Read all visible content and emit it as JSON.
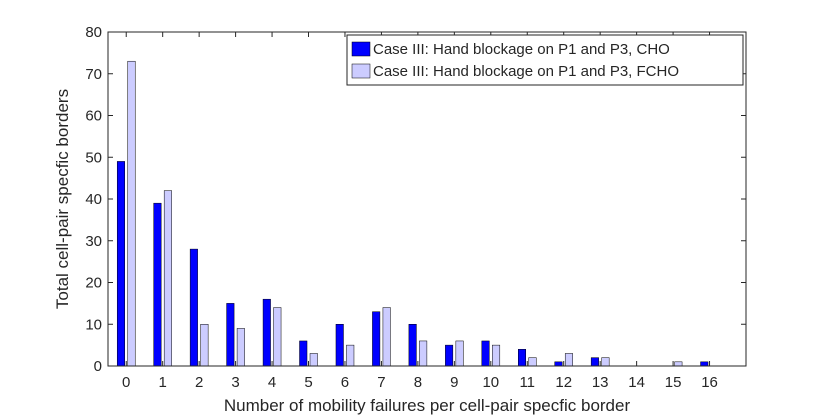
{
  "chart_data": {
    "type": "bar",
    "categories": [
      "0",
      "1",
      "2",
      "3",
      "4",
      "5",
      "6",
      "7",
      "8",
      "9",
      "10",
      "11",
      "12",
      "13",
      "14",
      "15",
      "16"
    ],
    "series": [
      {
        "name": "Case III: Hand blockage on P1 and P3, CHO",
        "color": "#0000ff",
        "values": [
          49,
          39,
          28,
          15,
          16,
          6,
          10,
          13,
          10,
          5,
          6,
          4,
          1,
          2,
          0,
          0,
          1
        ]
      },
      {
        "name": "Case III: Hand blockage on P1 and P3, FCHO",
        "color": "#ccccff",
        "values": [
          73,
          42,
          10,
          9,
          14,
          3,
          5,
          14,
          6,
          6,
          5,
          2,
          3,
          2,
          0,
          1,
          0
        ]
      }
    ],
    "xlabel": "Number of mobility failures per cell-pair specfic border",
    "ylabel": "Total cell-pair specfic borders",
    "ylim": [
      0,
      80
    ],
    "yticks": [
      0,
      10,
      20,
      30,
      40,
      50,
      60,
      70,
      80
    ],
    "grid": false,
    "legend_position": "top-right"
  }
}
